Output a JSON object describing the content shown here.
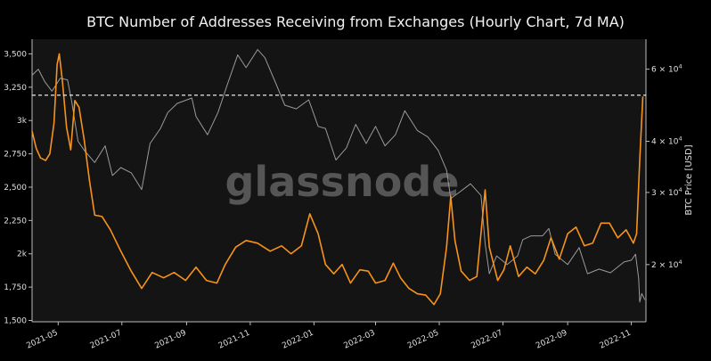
{
  "chart_data": {
    "type": "line",
    "title": "BTC Number of Addresses Receiving from Exchanges (Hourly Chart, 7d MA)",
    "watermark": "glassnode",
    "xlabel": "",
    "ylabel": "",
    "y2label": "BTC Price [USD]",
    "x_ticks": [
      "2021-05",
      "2021-07",
      "2021-09",
      "2021-11",
      "2022-01",
      "2022-03",
      "2022-05",
      "2022-07",
      "2022-09",
      "2022-11"
    ],
    "x_range": [
      "2021-04-06",
      "2022-11-15"
    ],
    "y_ticks": [
      {
        "value": 3500,
        "label": "3,500"
      },
      {
        "value": 3250,
        "label": "3,250"
      },
      {
        "value": 3000,
        "label": "3k"
      },
      {
        "value": 2750,
        "label": "2,750"
      },
      {
        "value": 2500,
        "label": "2,500"
      },
      {
        "value": 2250,
        "label": "2,250"
      },
      {
        "value": 2000,
        "label": "2k"
      },
      {
        "value": 1750,
        "label": "1,750"
      },
      {
        "value": 1500,
        "label": "1,500"
      }
    ],
    "ylim": [
      1490,
      3610
    ],
    "y2_ticks": [
      {
        "value": 60000,
        "base": "6 × 10",
        "exp": "4"
      },
      {
        "value": 40000,
        "base": "4 × 10",
        "exp": "4"
      },
      {
        "value": 30000,
        "base": "3 × 10",
        "exp": "4"
      },
      {
        "value": 20000,
        "base": "2 × 10",
        "exp": "4"
      }
    ],
    "y2lim": [
      14500,
      71000
    ],
    "y2_scale": "log",
    "reference_line": {
      "value": 3190,
      "style": "dashed",
      "color": "#ffffff"
    },
    "grid": false,
    "series": [
      {
        "axis": "left",
        "color": "#f7931a",
        "points": [
          [
            "2021-04-06",
            2920
          ],
          [
            "2021-04-10",
            2790
          ],
          [
            "2021-04-14",
            2720
          ],
          [
            "2021-04-19",
            2700
          ],
          [
            "2021-04-23",
            2750
          ],
          [
            "2021-04-27",
            2980
          ],
          [
            "2021-04-30",
            3420
          ],
          [
            "2021-05-02",
            3500
          ],
          [
            "2021-05-05",
            3300
          ],
          [
            "2021-05-09",
            2950
          ],
          [
            "2021-05-13",
            2780
          ],
          [
            "2021-05-17",
            3150
          ],
          [
            "2021-05-21",
            3100
          ],
          [
            "2021-05-26",
            2850
          ],
          [
            "2021-05-31",
            2550
          ],
          [
            "2021-06-05",
            2290
          ],
          [
            "2021-06-12",
            2280
          ],
          [
            "2021-06-20",
            2180
          ],
          [
            "2021-06-30",
            2020
          ],
          [
            "2021-07-10",
            1870
          ],
          [
            "2021-07-20",
            1740
          ],
          [
            "2021-07-30",
            1860
          ],
          [
            "2021-08-10",
            1820
          ],
          [
            "2021-08-20",
            1860
          ],
          [
            "2021-08-31",
            1800
          ],
          [
            "2021-09-10",
            1900
          ],
          [
            "2021-09-20",
            1800
          ],
          [
            "2021-09-30",
            1780
          ],
          [
            "2021-10-08",
            1920
          ],
          [
            "2021-10-18",
            2050
          ],
          [
            "2021-10-28",
            2100
          ],
          [
            "2021-11-08",
            2080
          ],
          [
            "2021-11-20",
            2020
          ],
          [
            "2021-12-01",
            2060
          ],
          [
            "2021-12-10",
            2000
          ],
          [
            "2021-12-20",
            2060
          ],
          [
            "2021-12-28",
            2300
          ],
          [
            "2022-01-05",
            2150
          ],
          [
            "2022-01-12",
            1920
          ],
          [
            "2022-01-20",
            1850
          ],
          [
            "2022-01-28",
            1920
          ],
          [
            "2022-02-05",
            1780
          ],
          [
            "2022-02-14",
            1880
          ],
          [
            "2022-02-22",
            1870
          ],
          [
            "2022-03-01",
            1780
          ],
          [
            "2022-03-10",
            1800
          ],
          [
            "2022-03-18",
            1930
          ],
          [
            "2022-03-25",
            1820
          ],
          [
            "2022-04-02",
            1740
          ],
          [
            "2022-04-10",
            1700
          ],
          [
            "2022-04-18",
            1690
          ],
          [
            "2022-04-26",
            1620
          ],
          [
            "2022-05-02",
            1700
          ],
          [
            "2022-05-08",
            2050
          ],
          [
            "2022-05-12",
            2430
          ],
          [
            "2022-05-16",
            2100
          ],
          [
            "2022-05-22",
            1870
          ],
          [
            "2022-05-30",
            1800
          ],
          [
            "2022-06-06",
            1830
          ],
          [
            "2022-06-14",
            2480
          ],
          [
            "2022-06-18",
            2050
          ],
          [
            "2022-06-26",
            1800
          ],
          [
            "2022-07-02",
            1880
          ],
          [
            "2022-07-08",
            2060
          ],
          [
            "2022-07-16",
            1830
          ],
          [
            "2022-07-24",
            1900
          ],
          [
            "2022-08-01",
            1850
          ],
          [
            "2022-08-09",
            1950
          ],
          [
            "2022-08-16",
            2120
          ],
          [
            "2022-08-24",
            1960
          ],
          [
            "2022-09-01",
            2150
          ],
          [
            "2022-09-09",
            2200
          ],
          [
            "2022-09-17",
            2060
          ],
          [
            "2022-09-25",
            2080
          ],
          [
            "2022-10-03",
            2230
          ],
          [
            "2022-10-11",
            2230
          ],
          [
            "2022-10-19",
            2120
          ],
          [
            "2022-10-27",
            2180
          ],
          [
            "2022-11-03",
            2080
          ],
          [
            "2022-11-06",
            2150
          ],
          [
            "2022-11-09",
            2700
          ],
          [
            "2022-11-12",
            3180
          ]
        ]
      },
      {
        "axis": "right",
        "color": "#9a9a9a",
        "points": [
          [
            "2021-04-06",
            58000
          ],
          [
            "2021-04-12",
            60000
          ],
          [
            "2021-04-18",
            56000
          ],
          [
            "2021-04-25",
            53000
          ],
          [
            "2021-05-03",
            57000
          ],
          [
            "2021-05-10",
            56500
          ],
          [
            "2021-05-14",
            50000
          ],
          [
            "2021-05-20",
            40000
          ],
          [
            "2021-05-26",
            38000
          ],
          [
            "2021-06-05",
            35500
          ],
          [
            "2021-06-15",
            39000
          ],
          [
            "2021-06-22",
            33000
          ],
          [
            "2021-06-30",
            34500
          ],
          [
            "2021-07-10",
            33500
          ],
          [
            "2021-07-20",
            30500
          ],
          [
            "2021-07-28",
            39500
          ],
          [
            "2021-08-07",
            43000
          ],
          [
            "2021-08-14",
            47000
          ],
          [
            "2021-08-23",
            49500
          ],
          [
            "2021-09-06",
            51000
          ],
          [
            "2021-09-10",
            46000
          ],
          [
            "2021-09-21",
            41500
          ],
          [
            "2021-10-01",
            47000
          ],
          [
            "2021-10-10",
            55000
          ],
          [
            "2021-10-20",
            65000
          ],
          [
            "2021-10-28",
            60500
          ],
          [
            "2021-11-08",
            67000
          ],
          [
            "2021-11-15",
            64000
          ],
          [
            "2021-11-26",
            55000
          ],
          [
            "2021-12-04",
            49000
          ],
          [
            "2021-12-15",
            48000
          ],
          [
            "2021-12-27",
            50500
          ],
          [
            "2022-01-05",
            43500
          ],
          [
            "2022-01-12",
            43000
          ],
          [
            "2022-01-22",
            36000
          ],
          [
            "2022-02-01",
            38500
          ],
          [
            "2022-02-10",
            44000
          ],
          [
            "2022-02-20",
            39500
          ],
          [
            "2022-03-01",
            43500
          ],
          [
            "2022-03-10",
            39000
          ],
          [
            "2022-03-20",
            41500
          ],
          [
            "2022-03-29",
            47500
          ],
          [
            "2022-04-10",
            42500
          ],
          [
            "2022-04-20",
            41000
          ],
          [
            "2022-04-30",
            38000
          ],
          [
            "2022-05-08",
            34000
          ],
          [
            "2022-05-12",
            29000
          ],
          [
            "2022-05-20",
            30000
          ],
          [
            "2022-05-31",
            31500
          ],
          [
            "2022-06-10",
            29500
          ],
          [
            "2022-06-14",
            22500
          ],
          [
            "2022-06-18",
            19000
          ],
          [
            "2022-06-25",
            21000
          ],
          [
            "2022-07-05",
            20000
          ],
          [
            "2022-07-15",
            21000
          ],
          [
            "2022-07-20",
            23000
          ],
          [
            "2022-07-28",
            23500
          ],
          [
            "2022-08-08",
            23500
          ],
          [
            "2022-08-14",
            24500
          ],
          [
            "2022-08-20",
            21200
          ],
          [
            "2022-09-01",
            20000
          ],
          [
            "2022-09-12",
            22000
          ],
          [
            "2022-09-20",
            19000
          ],
          [
            "2022-10-01",
            19500
          ],
          [
            "2022-10-12",
            19100
          ],
          [
            "2022-10-25",
            20300
          ],
          [
            "2022-11-01",
            20500
          ],
          [
            "2022-11-05",
            21200
          ],
          [
            "2022-11-08",
            18500
          ],
          [
            "2022-11-09",
            16200
          ],
          [
            "2022-11-11",
            17000
          ],
          [
            "2022-11-14",
            16400
          ]
        ]
      }
    ]
  }
}
